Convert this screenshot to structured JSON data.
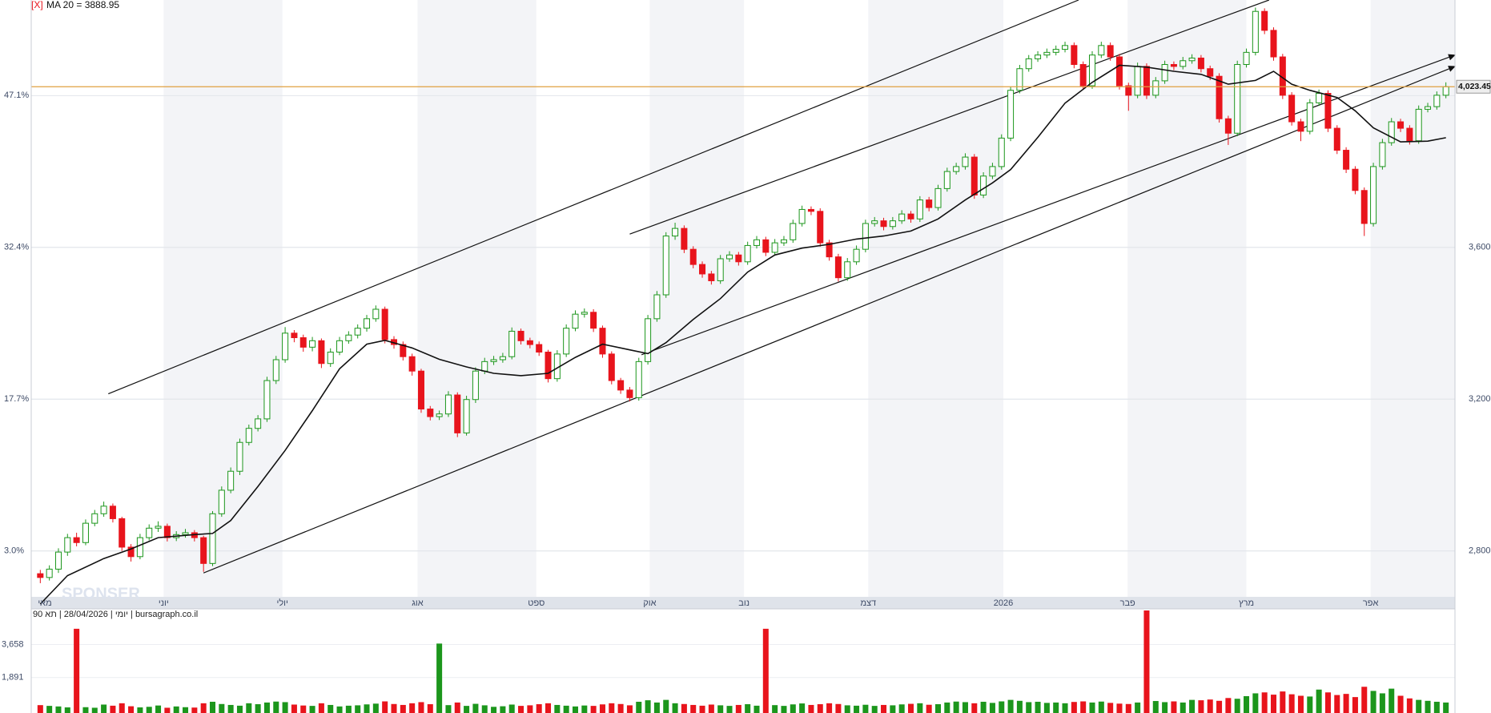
{
  "chart_data": {
    "type": "candlestick",
    "toggle": "[X]",
    "ma_label": "MA 20 = 3888.95",
    "watermark": "SPONSER",
    "info": "יומי | 28/04/2026 | תא 90 | bursagraph.co.il",
    "up_color": "#1c961c",
    "down_color": "#e8141c",
    "xlim": [
      0,
      157
    ],
    "xticks": [
      {
        "value": 1.5,
        "label": "מאי"
      },
      {
        "value": 14.6,
        "label": "יוני"
      },
      {
        "value": 27.7,
        "label": "יולי"
      },
      {
        "value": 42.6,
        "label": "אוג"
      },
      {
        "value": 55.7,
        "label": "ספט"
      },
      {
        "value": 68.2,
        "label": "אוק"
      },
      {
        "value": 78.6,
        "label": "נוב"
      },
      {
        "value": 92.3,
        "label": "דצמ"
      },
      {
        "value": 107.2,
        "label": "2026"
      },
      {
        "value": 120.9,
        "label": "פבר"
      },
      {
        "value": 134.0,
        "label": "מרץ"
      },
      {
        "value": 147.7,
        "label": "אפר"
      }
    ],
    "ylim": [
      2679,
      4252
    ],
    "yticks": [
      {
        "value": 2800,
        "label": "2,800"
      },
      {
        "value": 3200,
        "label": "3,200"
      },
      {
        "value": 3600,
        "label": "3,600"
      }
    ],
    "y2lim": [
      -1.45,
      56.36
    ],
    "y2ticks": [
      {
        "value": 3.0,
        "label": "3.0%"
      },
      {
        "value": 17.7,
        "label": "17.7%"
      },
      {
        "value": 32.4,
        "label": "32.4%"
      },
      {
        "value": 47.1,
        "label": "47.1%"
      }
    ],
    "grid": true,
    "open": [
      2740,
      2730,
      2752,
      2797,
      2835,
      2822,
      2873,
      2898,
      2918,
      2885,
      2810,
      2785,
      2835,
      2860,
      2865,
      2835,
      2843,
      2848,
      2835,
      2767,
      2898,
      2960,
      3010,
      3086,
      3123,
      3148,
      3249,
      3304,
      3374,
      3362,
      3337,
      3354,
      3294,
      3324,
      3354,
      3369,
      3387,
      3412,
      3437,
      3357,
      3344,
      3312,
      3274,
      3174,
      3154,
      3161,
      3211,
      3111,
      3199,
      3274,
      3299,
      3304,
      3312,
      3379,
      3354,
      3344,
      3324,
      3254,
      3319,
      3387,
      3424,
      3429,
      3387,
      3319,
      3249,
      3224,
      3204,
      3299,
      3412,
      3475,
      3630,
      3650,
      3595,
      3555,
      3530,
      3512,
      3570,
      3580,
      3562,
      3605,
      3620,
      3587,
      3612,
      3620,
      3663,
      3700,
      3695,
      3612,
      3575,
      3520,
      3562,
      3595,
      3663,
      3670,
      3655,
      3670,
      3688,
      3675,
      3725,
      3705,
      3755,
      3800,
      3813,
      3838,
      3738,
      3788,
      3813,
      3888,
      4014,
      4071,
      4097,
      4107,
      4114,
      4122,
      4132,
      4082,
      4026,
      4107,
      4132,
      4102,
      4026,
      4001,
      4077,
      4001,
      4039,
      4082,
      4077,
      4092,
      4099,
      4071,
      4051,
      3939,
      3901,
      4082,
      4114,
      4222,
      4172,
      4102,
      4001,
      3931,
      3906,
      3981,
      4006,
      3914,
      3856,
      3806,
      3750,
      3663,
      3813,
      3876,
      3931,
      3914,
      3881,
      3964,
      3971,
      4001
    ],
    "high": [
      2750,
      2762,
      2807,
      2845,
      2848,
      2883,
      2908,
      2930,
      2925,
      2890,
      2818,
      2845,
      2870,
      2878,
      2872,
      2852,
      2858,
      2855,
      2840,
      2905,
      2970,
      3020,
      3096,
      3133,
      3158,
      3259,
      3314,
      3390,
      3382,
      3370,
      3364,
      3360,
      3334,
      3364,
      3379,
      3397,
      3422,
      3447,
      3444,
      3366,
      3352,
      3320,
      3280,
      3182,
      3170,
      3221,
      3218,
      3209,
      3284,
      3309,
      3314,
      3322,
      3389,
      3386,
      3362,
      3352,
      3330,
      3329,
      3397,
      3434,
      3439,
      3437,
      3394,
      3326,
      3256,
      3232,
      3309,
      3422,
      3485,
      3640,
      3665,
      3658,
      3603,
      3563,
      3538,
      3580,
      3590,
      3588,
      3615,
      3630,
      3628,
      3622,
      3630,
      3673,
      3710,
      3708,
      3703,
      3620,
      3583,
      3572,
      3605,
      3673,
      3680,
      3678,
      3680,
      3698,
      3696,
      3735,
      3733,
      3765,
      3810,
      3823,
      3848,
      3846,
      3798,
      3823,
      3898,
      4024,
      4081,
      4107,
      4117,
      4124,
      4132,
      4142,
      4140,
      4090,
      4117,
      4142,
      4140,
      4110,
      4034,
      4087,
      4085,
      4049,
      4092,
      4090,
      4102,
      4109,
      4107,
      4079,
      4059,
      3947,
      4092,
      4124,
      4232,
      4230,
      4180,
      4110,
      4009,
      3939,
      3991,
      4016,
      4014,
      3922,
      3864,
      3814,
      3758,
      3823,
      3886,
      3941,
      3939,
      3922,
      3974,
      3981,
      4011,
      4035
    ],
    "low": [
      2715,
      2722,
      2742,
      2787,
      2812,
      2815,
      2865,
      2890,
      2875,
      2800,
      2772,
      2778,
      2828,
      2850,
      2825,
      2826,
      2835,
      2825,
      2745,
      2760,
      2890,
      2952,
      3000,
      3078,
      3115,
      3140,
      3240,
      3296,
      3350,
      3325,
      3326,
      3282,
      3285,
      3316,
      3346,
      3360,
      3378,
      3404,
      3347,
      3333,
      3302,
      3262,
      3164,
      3144,
      3145,
      3153,
      3100,
      3104,
      3190,
      3266,
      3290,
      3296,
      3305,
      3344,
      3334,
      3314,
      3244,
      3246,
      3311,
      3379,
      3415,
      3377,
      3309,
      3239,
      3214,
      3194,
      3196,
      3291,
      3404,
      3467,
      3620,
      3585,
      3545,
      3520,
      3502,
      3504,
      3562,
      3552,
      3554,
      3597,
      3577,
      3579,
      3604,
      3612,
      3655,
      3685,
      3602,
      3565,
      3510,
      3512,
      3554,
      3587,
      3655,
      3645,
      3647,
      3662,
      3665,
      3667,
      3695,
      3697,
      3747,
      3792,
      3805,
      3728,
      3730,
      3780,
      3805,
      3880,
      4006,
      4063,
      4089,
      4099,
      4106,
      4114,
      4072,
      4016,
      4018,
      4099,
      4092,
      4016,
      3960,
      3993,
      3991,
      3993,
      4031,
      4067,
      4069,
      4084,
      4061,
      4041,
      3929,
      3870,
      3893,
      4074,
      4106,
      4162,
      4092,
      3991,
      3921,
      3880,
      3898,
      3973,
      3904,
      3846,
      3796,
      3740,
      3630,
      3655,
      3805,
      3868,
      3904,
      3871,
      3873,
      3956,
      3963,
      3993
    ],
    "close": [
      2730,
      2752,
      2797,
      2835,
      2822,
      2873,
      2898,
      2918,
      2885,
      2810,
      2785,
      2835,
      2860,
      2865,
      2835,
      2843,
      2848,
      2835,
      2767,
      2898,
      2960,
      3010,
      3086,
      3123,
      3148,
      3249,
      3304,
      3374,
      3362,
      3337,
      3354,
      3294,
      3324,
      3354,
      3369,
      3387,
      3412,
      3437,
      3357,
      3344,
      3312,
      3274,
      3174,
      3154,
      3161,
      3211,
      3111,
      3199,
      3274,
      3299,
      3304,
      3312,
      3379,
      3354,
      3344,
      3324,
      3254,
      3319,
      3387,
      3424,
      3429,
      3387,
      3319,
      3249,
      3224,
      3204,
      3299,
      3412,
      3475,
      3630,
      3650,
      3595,
      3555,
      3530,
      3512,
      3570,
      3580,
      3562,
      3605,
      3620,
      3587,
      3612,
      3620,
      3663,
      3700,
      3695,
      3612,
      3575,
      3520,
      3562,
      3595,
      3663,
      3670,
      3655,
      3670,
      3688,
      3675,
      3725,
      3705,
      3755,
      3800,
      3813,
      3838,
      3738,
      3788,
      3813,
      3888,
      4014,
      4071,
      4097,
      4107,
      4114,
      4122,
      4132,
      4082,
      4026,
      4107,
      4132,
      4102,
      4026,
      4001,
      4077,
      4001,
      4039,
      4082,
      4077,
      4092,
      4099,
      4071,
      4051,
      3939,
      3901,
      4082,
      4114,
      4222,
      4172,
      4102,
      4001,
      3931,
      3906,
      3981,
      4006,
      3914,
      3856,
      3806,
      3750,
      3663,
      3813,
      3876,
      3931,
      3914,
      3881,
      3964,
      3971,
      4001,
      4023.45
    ],
    "ma": {
      "color": "#111111",
      "x": [
        1,
        4,
        8,
        11,
        14,
        18,
        20,
        22,
        25,
        28,
        31,
        34,
        37,
        39,
        42,
        45,
        48,
        51,
        54,
        57,
        60,
        63,
        66,
        68,
        70,
        73,
        76,
        79,
        82,
        85,
        88,
        91,
        94,
        97,
        100,
        103,
        106,
        108,
        111,
        114,
        117,
        120,
        123,
        126,
        129,
        132,
        135,
        137,
        139,
        141,
        144,
        146,
        148,
        151,
        154,
        156
      ],
      "values": [
        2660,
        2735,
        2780,
        2805,
        2835,
        2843,
        2846,
        2880,
        2970,
        3065,
        3170,
        3280,
        3345,
        3355,
        3335,
        3305,
        3285,
        3268,
        3262,
        3268,
        3310,
        3345,
        3330,
        3320,
        3349,
        3410,
        3465,
        3535,
        3580,
        3598,
        3608,
        3622,
        3630,
        3643,
        3675,
        3725,
        3770,
        3805,
        3890,
        3980,
        4035,
        4080,
        4075,
        4064,
        4056,
        4030,
        4040,
        4064,
        4030,
        4014,
        3995,
        3960,
        3915,
        3878,
        3880,
        3888.95
      ]
    },
    "last_price": 4023.45,
    "last_price_label": "4,023.45",
    "last_price_color": "#e0a040",
    "trendlines": [
      {
        "x": [
          8.5,
          115.5
        ],
        "y": [
          3214,
          4252
        ],
        "arrow": false
      },
      {
        "x": [
          66,
          136.5
        ],
        "y": [
          3635,
          4252
        ],
        "arrow": false
      },
      {
        "x": [
          19,
          157
        ],
        "y": [
          2742,
          4077
        ],
        "arrow": true
      },
      {
        "x": [
          67.3,
          157
        ],
        "y": [
          3317,
          4107
        ],
        "arrow": true
      }
    ],
    "volume": {
      "ylim": [
        0,
        5475
      ],
      "yticks": [
        {
          "value": 1891,
          "label": "1,891"
        },
        {
          "value": 3658,
          "label": "3,658"
        }
      ],
      "values": [
        420,
        380,
        350,
        300,
        4497,
        310,
        280,
        450,
        390,
        520,
        360,
        300,
        330,
        400,
        280,
        350,
        310,
        290,
        520,
        600,
        480,
        430,
        390,
        520,
        470,
        560,
        610,
        580,
        450,
        400,
        380,
        520,
        430,
        350,
        390,
        410,
        460,
        500,
        620,
        480,
        430,
        520,
        580,
        470,
        3707,
        420,
        560,
        380,
        490,
        410,
        330,
        360,
        450,
        380,
        410,
        470,
        520,
        430,
        390,
        350,
        400,
        380,
        460,
        520,
        480,
        410,
        600,
        680,
        560,
        700,
        520,
        480,
        430,
        390,
        450,
        410,
        380,
        430,
        470,
        390,
        4497,
        420,
        380,
        460,
        510,
        430,
        470,
        520,
        480,
        410,
        390,
        440,
        380,
        430,
        410,
        460,
        490,
        520,
        440,
        470,
        560,
        610,
        580,
        520,
        600,
        540,
        620,
        700,
        650,
        580,
        600,
        540,
        560,
        520,
        590,
        620,
        560,
        610,
        540,
        500,
        480,
        560,
        5474,
        640,
        580,
        620,
        560,
        700,
        680,
        720,
        650,
        800,
        760,
        900,
        1050,
        1100,
        980,
        1150,
        1000,
        920,
        880,
        1250,
        1100,
        960,
        1020,
        850,
        1400,
        1180,
        1050,
        1300,
        920,
        780,
        700,
        650,
        600,
        560
      ]
    }
  }
}
